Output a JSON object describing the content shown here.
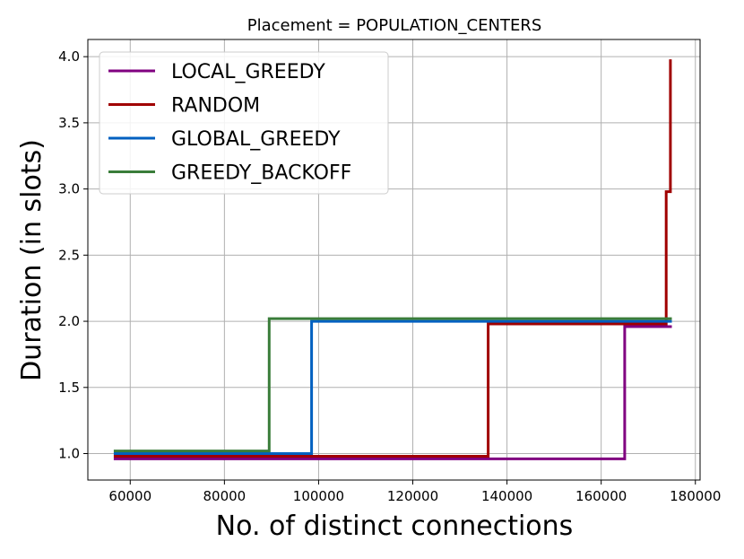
{
  "chart_data": {
    "type": "line",
    "title": "Placement = POPULATION_CENTERS",
    "xlabel": "No. of distinct connections",
    "ylabel": "Duration (in slots)",
    "xlim": [
      51000,
      181000
    ],
    "ylim": [
      0.8,
      4.13
    ],
    "xticks": [
      60000,
      80000,
      100000,
      120000,
      140000,
      160000,
      180000
    ],
    "xtick_labels": [
      "60000",
      "80000",
      "100000",
      "120000",
      "140000",
      "160000",
      "180000"
    ],
    "yticks": [
      1.0,
      1.5,
      2.0,
      2.5,
      3.0,
      3.5,
      4.0
    ],
    "ytick_labels": [
      "1.0",
      "1.5",
      "2.0",
      "2.5",
      "3.0",
      "3.5",
      "4.0"
    ],
    "grid": true,
    "legend_position": "top-left",
    "series": [
      {
        "name": "LOCAL_GREEDY",
        "color": "#800080",
        "x": [
          56500,
          165000,
          165000,
          175000
        ],
        "y": [
          0.96,
          0.96,
          1.96,
          1.96
        ]
      },
      {
        "name": "RANDOM",
        "color": "#a00000",
        "x": [
          56500,
          136000,
          136000,
          173800,
          173800,
          174700,
          174700
        ],
        "y": [
          0.98,
          0.98,
          1.98,
          1.98,
          2.98,
          2.98,
          3.98
        ]
      },
      {
        "name": "GLOBAL_GREEDY",
        "color": "#0060c0",
        "x": [
          56500,
          98500,
          98500,
          175000
        ],
        "y": [
          1.0,
          1.0,
          2.0,
          2.0
        ]
      },
      {
        "name": "GREEDY_BACKOFF",
        "color": "#3a7d3a",
        "x": [
          56500,
          89500,
          89500,
          175000
        ],
        "y": [
          1.02,
          1.02,
          2.02,
          2.02
        ]
      }
    ]
  }
}
